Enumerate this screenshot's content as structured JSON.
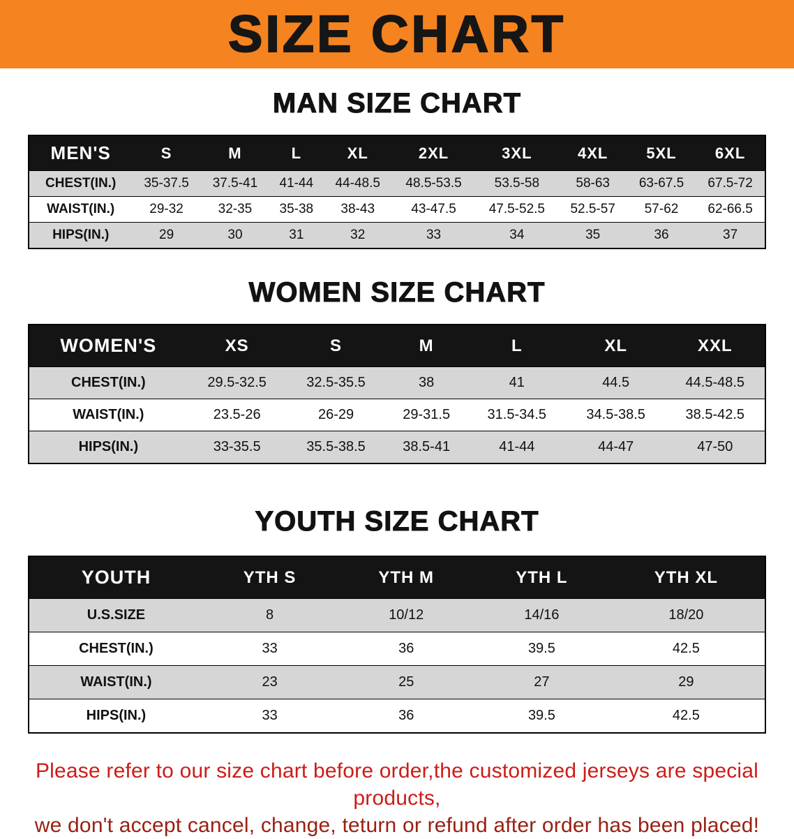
{
  "banner": {
    "title": "SIZE CHART"
  },
  "sections": [
    {
      "heading": "MAN SIZE CHART",
      "table": {
        "header": [
          "MEN'S",
          "S",
          "M",
          "L",
          "XL",
          "2XL",
          "3XL",
          "4XL",
          "5XL",
          "6XL"
        ],
        "rows": [
          [
            "CHEST(IN.)",
            "35-37.5",
            "37.5-41",
            "41-44",
            "44-48.5",
            "48.5-53.5",
            "53.5-58",
            "58-63",
            "63-67.5",
            "67.5-72"
          ],
          [
            "WAIST(IN.)",
            "29-32",
            "32-35",
            "35-38",
            "38-43",
            "43-47.5",
            "47.5-52.5",
            "52.5-57",
            "57-62",
            "62-66.5"
          ],
          [
            "HIPS(IN.)",
            "29",
            "30",
            "31",
            "32",
            "33",
            "34",
            "35",
            "36",
            "37"
          ]
        ]
      }
    },
    {
      "heading": "WOMEN SIZE CHART",
      "table": {
        "header": [
          "WOMEN'S",
          "XS",
          "S",
          "M",
          "L",
          "XL",
          "XXL"
        ],
        "rows": [
          [
            "CHEST(IN.)",
            "29.5-32.5",
            "32.5-35.5",
            "38",
            "41",
            "44.5",
            "44.5-48.5"
          ],
          [
            "WAIST(IN.)",
            "23.5-26",
            "26-29",
            "29-31.5",
            "31.5-34.5",
            "34.5-38.5",
            "38.5-42.5"
          ],
          [
            "HIPS(IN.)",
            "33-35.5",
            "35.5-38.5",
            "38.5-41",
            "41-44",
            "44-47",
            "47-50"
          ]
        ]
      }
    },
    {
      "heading": "YOUTH SIZE CHART",
      "table": {
        "header": [
          "YOUTH",
          "YTH S",
          "YTH M",
          "YTH L",
          "YTH XL"
        ],
        "rows": [
          [
            "U.S.SIZE",
            "8",
            "10/12",
            "14/16",
            "18/20"
          ],
          [
            "CHEST(IN.)",
            "33",
            "36",
            "39.5",
            "42.5"
          ],
          [
            "WAIST(IN.)",
            "23",
            "25",
            "27",
            "29"
          ],
          [
            "HIPS(IN.)",
            "33",
            "36",
            "39.5",
            "42.5"
          ]
        ]
      }
    }
  ],
  "disclaimer": {
    "lines": [
      "Please refer to our size chart before order,the customized jerseys are special products,",
      "we don't accept cancel, change, teturn or refund after order has been placed!"
    ]
  },
  "colors": {
    "banner_bg": "#f5831f",
    "header_bg": "#141414",
    "row_alt_bg": "#d6d6d6",
    "disclaimer_red": "#cb1d18",
    "disclaimer_dark_red": "#9a2013"
  }
}
